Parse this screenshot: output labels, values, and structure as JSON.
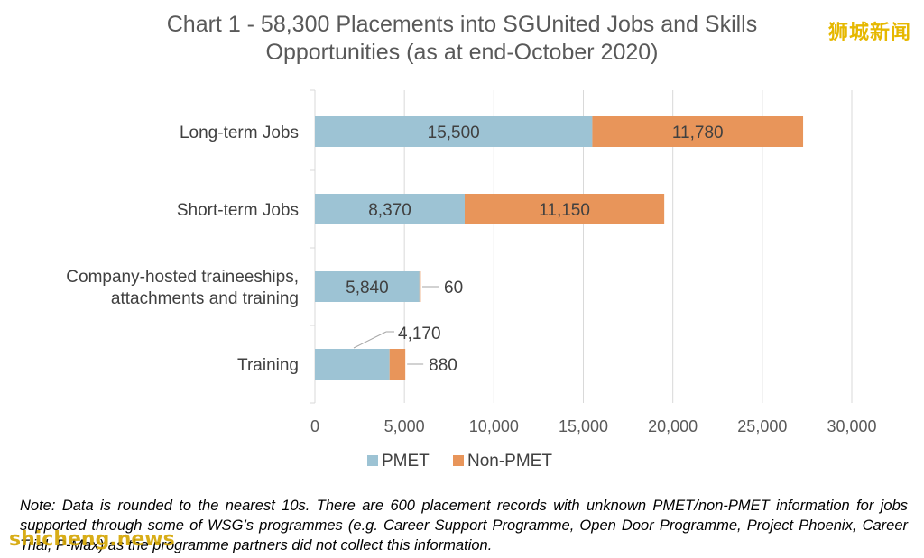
{
  "title_lines": [
    "Chart 1 - 58,300 Placements into SGUnited Jobs and Skills",
    "Opportunities (as at end-October 2020)"
  ],
  "watermarks": {
    "top": "狮城新闻",
    "bottom": "shicheng.news"
  },
  "note": "Note: Data is rounded to the nearest 10s. There are 600 placement records with unknown PMET/non-PMET information for jobs supported through some of WSG’s programmes (e.g. Career Support Programme, Open Door Programme, Project Phoenix, Career Trial, P-Max) as the programme partners did not collect this information.",
  "colors": {
    "PMET": "#9dc3d4",
    "Non-PMET": "#e8955a",
    "gridline": "#d9d9d9",
    "axis": "#d9d9d9"
  },
  "chart_data": {
    "type": "bar",
    "orientation": "horizontal",
    "stacked": true,
    "categories": [
      [
        "Long-term Jobs"
      ],
      [
        "Short-term Jobs"
      ],
      [
        "Company-hosted traineeships,",
        "attachments and training"
      ],
      [
        "Training"
      ]
    ],
    "series": [
      {
        "name": "PMET",
        "values": [
          15500,
          8370,
          5840,
          4170
        ],
        "labels": [
          "15,500",
          "8,370",
          "5,840",
          "4,170"
        ]
      },
      {
        "name": "Non-PMET",
        "values": [
          11780,
          11150,
          60,
          880
        ],
        "labels": [
          "11,780",
          "11,150",
          "60",
          "880"
        ]
      }
    ],
    "xlim": [
      0,
      30000
    ],
    "xticks": [
      0,
      5000,
      10000,
      15000,
      20000,
      25000,
      30000
    ],
    "xtick_labels": [
      "0",
      "5,000",
      "10,000",
      "15,000",
      "20,000",
      "25,000",
      "30,000"
    ],
    "grid": "vertical",
    "legend": "bottom-center"
  }
}
